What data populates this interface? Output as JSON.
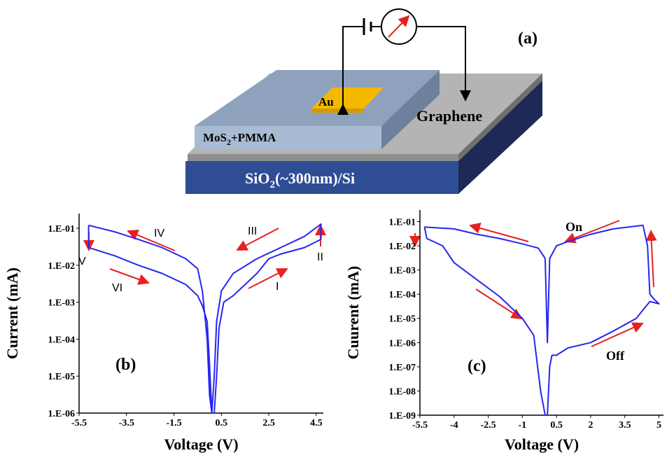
{
  "figure_a": {
    "label": "(a)",
    "au": "Au",
    "graphene": "Graphene",
    "mos2": [
      "MoS",
      "2",
      "+PMMA"
    ],
    "substrate": [
      "SiO",
      "2",
      "(~300nm)/Si"
    ]
  },
  "chart_data": [
    {
      "type": "line",
      "panel_label": "(b)",
      "xlabel": "Voltage (V)",
      "ylabel": "Current (mA)",
      "log_y": true,
      "color": "#2626f0",
      "annotations": [
        "I",
        "II",
        "III",
        "IV",
        "V",
        "VI"
      ],
      "xlim": [
        -5.5,
        4.8
      ],
      "ylim": [
        1e-06,
        0.25
      ],
      "xticks": [
        -5.5,
        -3.5,
        -1.5,
        0.5,
        2.5,
        4.5
      ],
      "yticks": [
        {
          "value": 1e-06,
          "label": "1.E-06"
        },
        {
          "value": 1e-05,
          "label": "1.E-05"
        },
        {
          "value": 0.0001,
          "label": "1.E-04"
        },
        {
          "value": 0.001,
          "label": "1.E-03"
        },
        {
          "value": 0.01,
          "label": "1.E-02"
        },
        {
          "value": 0.1,
          "label": "1.E-01"
        }
      ],
      "x": [
        -5.1,
        -4,
        -3,
        -2,
        -1,
        -0.5,
        -0.3,
        -0.1,
        0,
        0.1,
        0.2,
        0.3,
        0.5,
        1,
        2,
        3,
        4,
        4.7,
        4.7,
        4,
        3,
        2.5,
        2,
        1.5,
        1,
        0.6,
        0.4,
        0.3,
        0.2,
        0.1,
        0,
        -0.1,
        -0.3,
        -0.5,
        -1,
        -2,
        -3,
        -4,
        -5.1,
        -5.1
      ],
      "values": [
        0.12,
        0.08,
        0.05,
        0.03,
        0.015,
        0.008,
        0.002,
        0.0001,
        3e-06,
        1e-06,
        1e-05,
        0.0003,
        0.002,
        0.006,
        0.015,
        0.03,
        0.06,
        0.13,
        0.05,
        0.03,
        0.02,
        0.015,
        0.006,
        0.003,
        0.0015,
        0.001,
        0.0002,
        1e-05,
        1e-06,
        1e-06,
        2e-05,
        0.0003,
        0.0008,
        0.0015,
        0.003,
        0.006,
        0.01,
        0.018,
        0.03,
        0.12
      ]
    },
    {
      "type": "line",
      "panel_label": "(c)",
      "xlabel": "Voltage (V)",
      "ylabel": "Cuurent (mA)",
      "log_y": true,
      "color": "#2626f0",
      "annotations": [
        "On",
        "Off"
      ],
      "xlim": [
        -5.5,
        5.2
      ],
      "ylim": [
        1e-09,
        0.3
      ],
      "xticks": [
        -5.5,
        -4,
        -2.5,
        -1,
        0.5,
        2,
        3.5,
        5
      ],
      "yticks": [
        {
          "value": 1e-09,
          "label": "1.E-09"
        },
        {
          "value": 1e-08,
          "label": "1.E-08"
        },
        {
          "value": 1e-07,
          "label": "1.E-07"
        },
        {
          "value": 1e-06,
          "label": "1.E-06"
        },
        {
          "value": 1e-05,
          "label": "1.E-05"
        },
        {
          "value": 0.0001,
          "label": "1.E-04"
        },
        {
          "value": 0.001,
          "label": "1.E-03"
        },
        {
          "value": 0.01,
          "label": "1.E-02"
        },
        {
          "value": 0.1,
          "label": "1.E-01"
        }
      ],
      "x": [
        -5.3,
        -4,
        -3,
        -2,
        -1,
        -0.3,
        0,
        0.1,
        0.2,
        0.5,
        1,
        2,
        3,
        4.3,
        4.5,
        4.6,
        4.8,
        5,
        4.6,
        4,
        3,
        2,
        1,
        0.5,
        0.3,
        0.2,
        0.1,
        0,
        -0.2,
        -0.5,
        -1,
        -2,
        -3,
        -4,
        -4.5,
        -5.2,
        -5.3
      ],
      "values": [
        0.06,
        0.05,
        0.03,
        0.02,
        0.012,
        0.008,
        0.003,
        1e-06,
        0.003,
        0.01,
        0.015,
        0.03,
        0.05,
        0.07,
        0.01,
        0.0001,
        6e-05,
        4e-05,
        5e-05,
        1e-05,
        3e-06,
        1e-06,
        6e-07,
        3e-07,
        3e-07,
        1e-07,
        1e-09,
        1e-09,
        1e-08,
        2e-06,
        1e-05,
        8e-05,
        0.0004,
        0.002,
        0.01,
        0.02,
        0.06
      ]
    }
  ]
}
